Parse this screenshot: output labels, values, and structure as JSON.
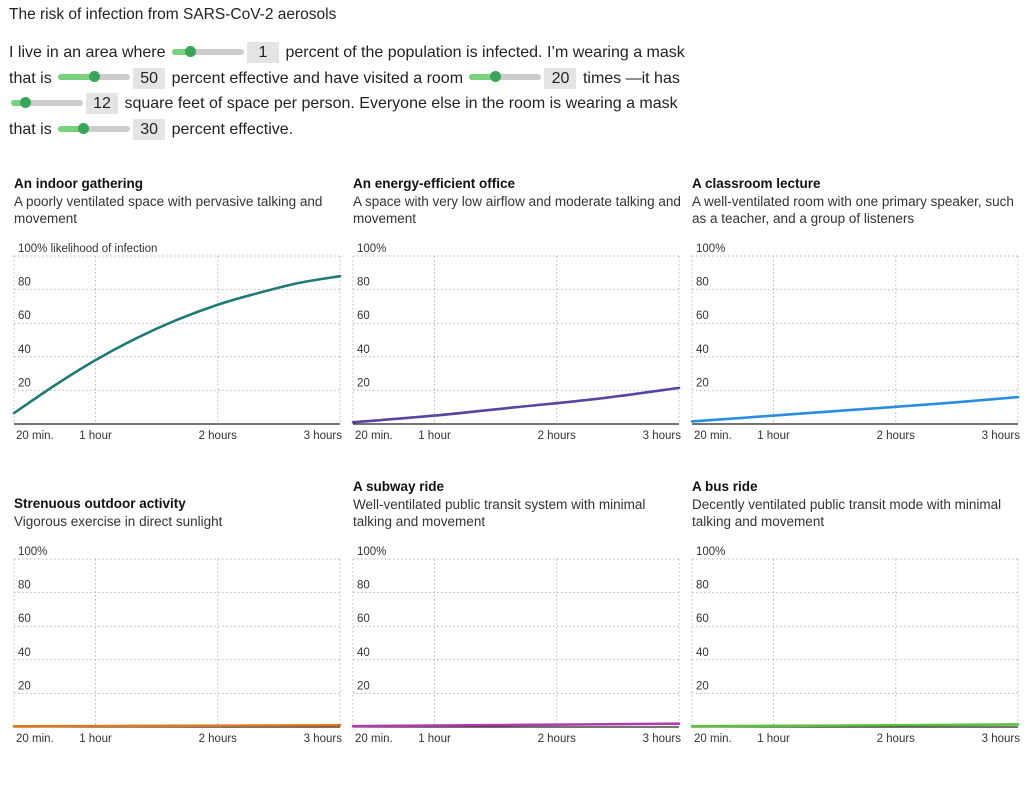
{
  "title": "The risk of infection from SARS-CoV-2 aerosols",
  "controls": {
    "s1": "I live in an area where",
    "v1": "1",
    "s2": "percent of the population is infected. I’m wearing a mask that is",
    "v2": "50",
    "s3": "percent effective and have visited a room",
    "v3": "20",
    "s4": "times —it has",
    "v4": "12",
    "s5": "square feet of space per person. Everyone else in the room is wearing a mask that is",
    "v5": "30",
    "s6": "percent effective.",
    "levels": [
      0.25,
      0.5,
      0.35,
      0.2,
      0.35
    ],
    "colors": {
      "fill": "#7ad17d",
      "knob": "#3aa35c",
      "track": "#cccccc"
    }
  },
  "chart_data": [
    {
      "type": "line",
      "title": "An indoor gathering",
      "subtitle": "A poorly ventilated space with pervasive talking and movement",
      "ylabel": "100% likelihood of infection",
      "yticks": [
        "20",
        "40",
        "60",
        "80"
      ],
      "ylim": [
        0,
        100
      ],
      "xlim": [
        20,
        180
      ],
      "xticks": [
        {
          "value": 20,
          "label": "20 min."
        },
        {
          "value": 60,
          "label": "1 hour"
        },
        {
          "value": 120,
          "label": "2 hours"
        },
        {
          "value": 180,
          "label": "3 hours"
        }
      ],
      "color": "#1f7a76",
      "x": [
        20,
        40,
        60,
        80,
        100,
        120,
        140,
        160,
        180
      ],
      "y": [
        6.5,
        23,
        38,
        51,
        62,
        71,
        78,
        84,
        88
      ]
    },
    {
      "type": "line",
      "title": "An energy-efficient office",
      "subtitle": "A space with very low airflow and moderate talking and movement",
      "ylabel": "100%",
      "yticks": [
        "20",
        "40",
        "60",
        "80"
      ],
      "ylim": [
        0,
        100
      ],
      "xlim": [
        20,
        180
      ],
      "xticks": [
        {
          "value": 20,
          "label": "20 min."
        },
        {
          "value": 60,
          "label": "1 hour"
        },
        {
          "value": 120,
          "label": "2 hours"
        },
        {
          "value": 180,
          "label": "3 hours"
        }
      ],
      "color": "#5a44a0",
      "x": [
        20,
        60,
        100,
        140,
        180
      ],
      "y": [
        1,
        5,
        10,
        15,
        21.5
      ]
    },
    {
      "type": "line",
      "title": "A classroom lecture",
      "subtitle": "A well-ventilated room with one primary speaker, such as a teacher, and a group of listeners",
      "ylabel": "100%",
      "yticks": [
        "20",
        "40",
        "60",
        "80"
      ],
      "ylim": [
        0,
        100
      ],
      "xlim": [
        20,
        180
      ],
      "xticks": [
        {
          "value": 20,
          "label": "20 min."
        },
        {
          "value": 60,
          "label": "1 hour"
        },
        {
          "value": 120,
          "label": "2 hours"
        },
        {
          "value": 180,
          "label": "3 hours"
        }
      ],
      "color": "#2a8de0",
      "x": [
        20,
        60,
        100,
        140,
        180
      ],
      "y": [
        1.5,
        5,
        8.5,
        12,
        16
      ]
    },
    {
      "type": "line",
      "title": "Strenuous outdoor activity",
      "subtitle": "Vigorous exercise in direct sunlight",
      "ylabel": "100%",
      "yticks": [
        "20",
        "40",
        "60",
        "80"
      ],
      "ylim": [
        0,
        100
      ],
      "xlim": [
        20,
        180
      ],
      "xticks": [
        {
          "value": 20,
          "label": "20 min."
        },
        {
          "value": 60,
          "label": "1 hour"
        },
        {
          "value": 120,
          "label": "2 hours"
        },
        {
          "value": 180,
          "label": "3 hours"
        }
      ],
      "color": "#e0761e",
      "x": [
        20,
        100,
        180
      ],
      "y": [
        0.4,
        0.7,
        1
      ]
    },
    {
      "type": "line",
      "title": "A subway ride",
      "subtitle": "Well-ventilated public transit system with minimal talking and movement",
      "ylabel": "100%",
      "yticks": [
        "20",
        "40",
        "60",
        "80"
      ],
      "ylim": [
        0,
        100
      ],
      "xlim": [
        20,
        180
      ],
      "xticks": [
        {
          "value": 20,
          "label": "20 min."
        },
        {
          "value": 60,
          "label": "1 hour"
        },
        {
          "value": 120,
          "label": "2 hours"
        },
        {
          "value": 180,
          "label": "3 hours"
        }
      ],
      "color": "#b03aa8",
      "x": [
        20,
        100,
        180
      ],
      "y": [
        0.5,
        1.2,
        2
      ]
    },
    {
      "type": "line",
      "title": "A bus ride",
      "subtitle": "Decently ventilated public transit mode with minimal talking and movement",
      "ylabel": "100%",
      "yticks": [
        "20",
        "40",
        "60",
        "80"
      ],
      "ylim": [
        0,
        100
      ],
      "xlim": [
        20,
        180
      ],
      "xticks": [
        {
          "value": 20,
          "label": "20 min."
        },
        {
          "value": 60,
          "label": "1 hour"
        },
        {
          "value": 120,
          "label": "2 hours"
        },
        {
          "value": 180,
          "label": "3 hours"
        }
      ],
      "color": "#5cbf3c",
      "x": [
        20,
        100,
        180
      ],
      "y": [
        0.4,
        0.9,
        1.5
      ]
    }
  ]
}
